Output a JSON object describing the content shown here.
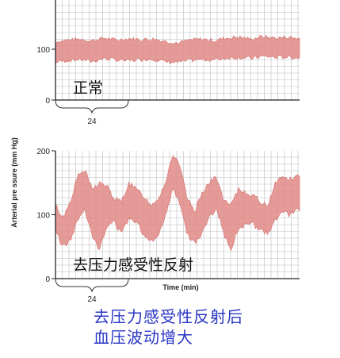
{
  "chart_data": [
    {
      "type": "area",
      "panel": "top",
      "inner_label": "正常",
      "ylabel": "Arterial pre ssure (mm Hg)",
      "xlabel": "",
      "ylim": [
        0,
        200
      ],
      "y_ticks": [
        "0",
        "100"
      ],
      "bracket_label": "24",
      "x": [
        0,
        5,
        10,
        15,
        20,
        25,
        30,
        35,
        40,
        45,
        50,
        55,
        60,
        65,
        70,
        75,
        80,
        85,
        90,
        95,
        100
      ],
      "series": [
        {
          "values_high": [
            115,
            118,
            120,
            117,
            122,
            118,
            121,
            119,
            120,
            116,
            112,
            118,
            120,
            117,
            122,
            124,
            120,
            125,
            122,
            124,
            121
          ],
          "values_low": [
            75,
            78,
            80,
            76,
            82,
            79,
            77,
            80,
            81,
            75,
            74,
            78,
            80,
            79,
            83,
            84,
            82,
            86,
            84,
            85,
            83
          ]
        }
      ],
      "grid": true,
      "color": "#e08a86"
    },
    {
      "type": "area",
      "panel": "bottom",
      "inner_label": "去压力感受性反射",
      "ylabel": "Arterial pre ssure (mm Hg)",
      "xlabel": "Time (min)",
      "ylim": [
        0,
        200
      ],
      "y_ticks": [
        "0",
        "100",
        "200"
      ],
      "bracket_label": "24",
      "x": [
        0,
        3,
        6,
        9,
        12,
        15,
        18,
        21,
        24,
        27,
        30,
        33,
        36,
        39,
        42,
        45,
        48,
        51,
        54,
        57,
        60,
        63,
        66,
        69,
        72,
        75,
        78,
        81,
        84,
        87,
        90,
        93,
        96,
        100
      ],
      "series": [
        {
          "values_high": [
            115,
            95,
            120,
            160,
            170,
            140,
            150,
            145,
            125,
            120,
            150,
            140,
            130,
            115,
            125,
            150,
            195,
            175,
            125,
            105,
            135,
            150,
            160,
            120,
            115,
            140,
            135,
            130,
            120,
            115,
            150,
            160,
            155,
            162
          ],
          "values_low": [
            75,
            50,
            60,
            90,
            110,
            70,
            45,
            80,
            90,
            70,
            95,
            90,
            70,
            60,
            65,
            100,
            140,
            120,
            70,
            55,
            70,
            95,
            110,
            70,
            45,
            80,
            85,
            85,
            75,
            70,
            90,
            105,
            100,
            108
          ]
        }
      ],
      "grid": true,
      "color": "#e08a86"
    }
  ],
  "caption": {
    "line1": "去压力感受性反射后",
    "line2": "血压波动增大"
  }
}
